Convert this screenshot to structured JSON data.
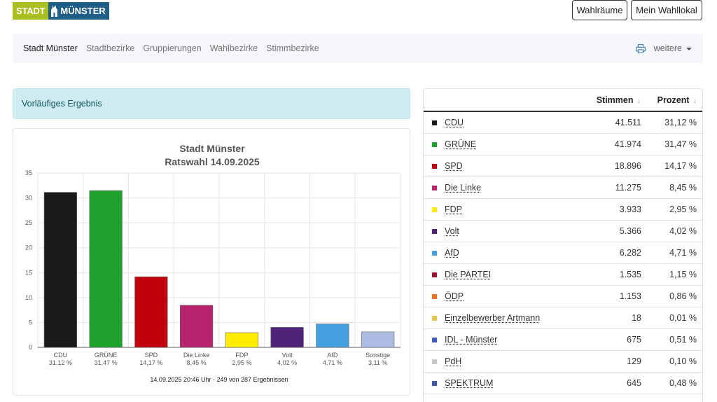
{
  "logo": {
    "left": "STADT",
    "right": "MÜNSTER"
  },
  "header_buttons": {
    "wahlraeume": "Wahlräume",
    "mein_wahllokal": "Mein Wahllokal"
  },
  "nav": {
    "items": [
      "Stadt Münster",
      "Stadtbezirke",
      "Gruppierungen",
      "Wahlbezirke",
      "Stimmbezirke"
    ],
    "more_label": "weitere"
  },
  "alert": {
    "text": "Vorläufiges Ergebnis"
  },
  "table": {
    "headers": {
      "stimmen": "Stimmen",
      "prozent": "Prozent",
      "sort_arrow": "↓"
    },
    "rows": [
      {
        "party": "CDU",
        "votes": "41.511",
        "percent": "31,12 %",
        "color": "#1a1a1a"
      },
      {
        "party": "GRÜNE",
        "votes": "41.974",
        "percent": "31,47 %",
        "color": "#1fa12e"
      },
      {
        "party": "SPD",
        "votes": "18.896",
        "percent": "14,17 %",
        "color": "#c0000b"
      },
      {
        "party": "Die Linke",
        "votes": "11.275",
        "percent": "8,45 %",
        "color": "#b8236d"
      },
      {
        "party": "FDP",
        "votes": "3.933",
        "percent": "2,95 %",
        "color": "#ffec00"
      },
      {
        "party": "Volt",
        "votes": "5.366",
        "percent": "4,02 %",
        "color": "#502379"
      },
      {
        "party": "AfD",
        "votes": "6.282",
        "percent": "4,71 %",
        "color": "#44a0df"
      },
      {
        "party": "Die PARTEI",
        "votes": "1.535",
        "percent": "1,15 %",
        "color": "#9e1230"
      },
      {
        "party": "ÖDP",
        "votes": "1.153",
        "percent": "0,86 %",
        "color": "#f07320"
      },
      {
        "party": "Einzelbewerber Artmann",
        "votes": "18",
        "percent": "0,01 %",
        "color": "#e6c34d"
      },
      {
        "party": "IDL - Münster",
        "votes": "675",
        "percent": "0,51 %",
        "color": "#3d5bb8"
      },
      {
        "party": "PdH",
        "votes": "129",
        "percent": "0,10 %",
        "color": "#c8c8c8"
      },
      {
        "party": "SPEKTRUM",
        "votes": "645",
        "percent": "0,48 %",
        "color": "#3c5aa8"
      }
    ]
  },
  "chart_data": {
    "type": "bar",
    "title": "Stadt Münster",
    "subtitle": "Ratswahl 14.09.2025",
    "categories": [
      "CDU",
      "GRÜNE",
      "SPD",
      "Die Linke",
      "FDP",
      "Volt",
      "AfD",
      "Sonstige"
    ],
    "values": [
      31.12,
      31.47,
      14.17,
      8.45,
      2.95,
      4.02,
      4.71,
      3.11
    ],
    "value_labels": [
      "31,12 %",
      "31,47 %",
      "14,17 %",
      "8,45 %",
      "2,95 %",
      "4,02 %",
      "4,71 %",
      "3,11 %"
    ],
    "colors": [
      "#1a1a1a",
      "#1fa12e",
      "#c0000b",
      "#b8236d",
      "#ffec00",
      "#502379",
      "#44a0df",
      "#adbce3"
    ],
    "ylim": [
      0,
      35
    ],
    "yticks": [
      0,
      5,
      10,
      15,
      20,
      25,
      30,
      35
    ],
    "grid": true,
    "footer": "14.09.2025 20:46 Uhr - 249 von 287 Ergebnissen"
  }
}
